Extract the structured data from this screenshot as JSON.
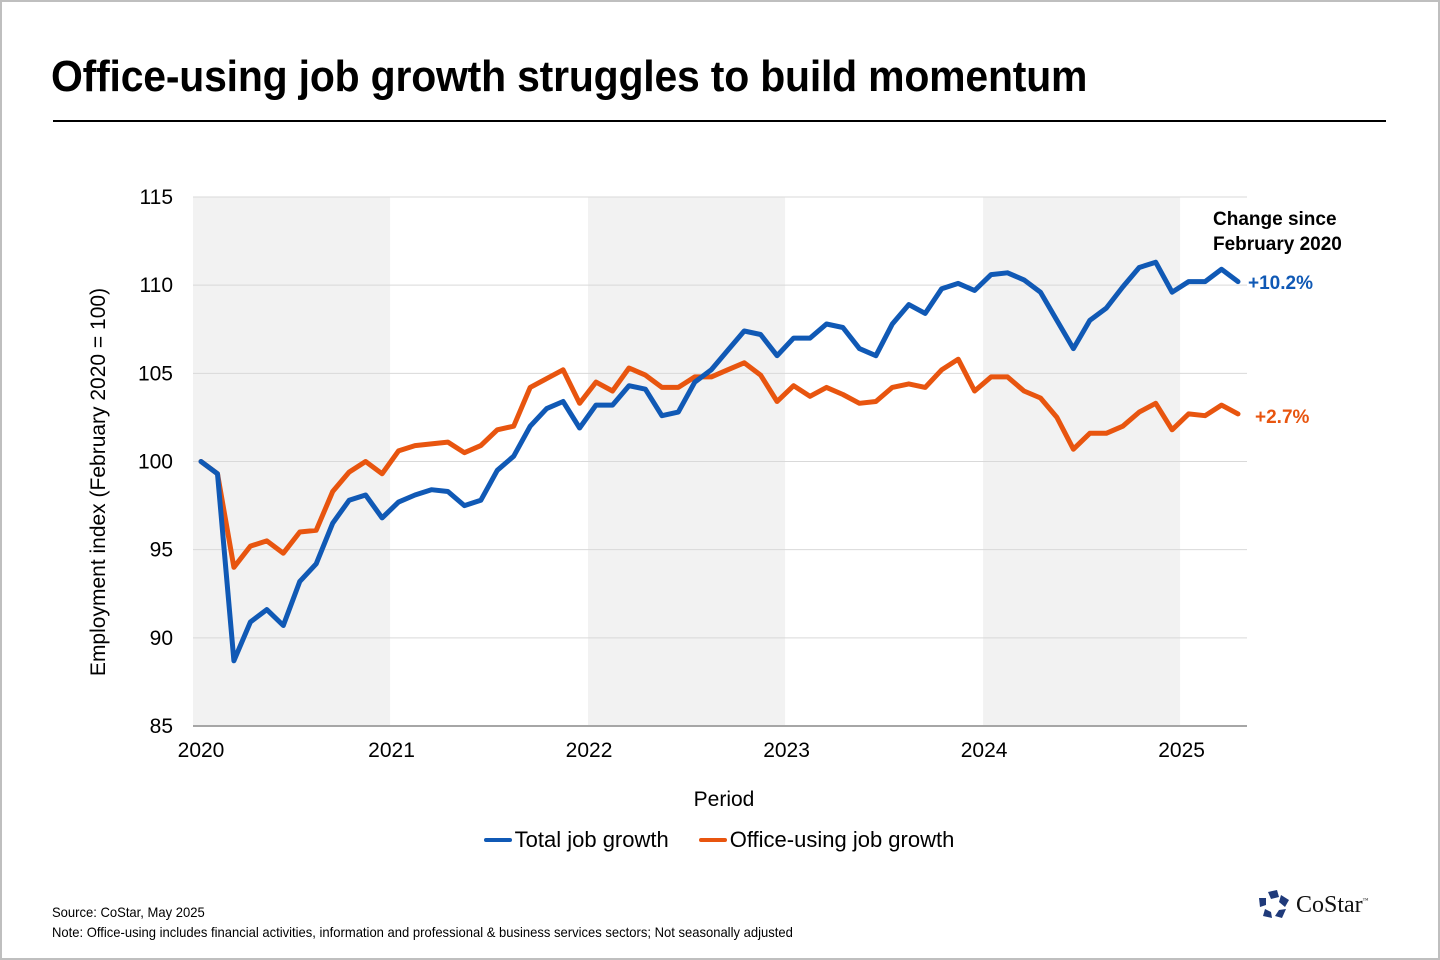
{
  "title": "Office-using job growth struggles to build momentum",
  "annotation": {
    "line1": "Change since",
    "line2": "February 2020"
  },
  "end_labels": {
    "total": "+10.2%",
    "office": "+2.7%"
  },
  "legend": {
    "total": "Total job growth",
    "office": "Office-using job growth"
  },
  "footer": {
    "source": "Source: CoStar, May 2025",
    "note": "Note: Office-using includes financial activities, information and professional & business services sectors; Not seasonally adjusted"
  },
  "logo": {
    "text": "CoStar",
    "tm": "™"
  },
  "colors": {
    "total": "#1059b5",
    "office": "#e8550f",
    "band": "#f2f2f2",
    "grid": "#d9d9d9",
    "axis": "#a6a6a6"
  },
  "chart_data": {
    "type": "line",
    "title": "Office-using job growth struggles to build momentum",
    "xlabel": "Period",
    "ylabel": "Employment index (February 2020 = 100)",
    "ylim": [
      85,
      115
    ],
    "yticks": [
      "85",
      "90",
      "95",
      "100",
      "105",
      "110",
      "115"
    ],
    "ytick_values": [
      85,
      90,
      95,
      100,
      105,
      110,
      115
    ],
    "xticks": [
      "2020",
      "2021",
      "2022",
      "2023",
      "2024",
      "2025"
    ],
    "start": "2020-01",
    "frequency": "monthly",
    "shaded_years": [
      "2020",
      "2022",
      "2024"
    ],
    "grid": true,
    "legend_position": "bottom",
    "series": [
      {
        "name": "Total job growth",
        "key": "total",
        "values": [
          100.0,
          99.3,
          88.7,
          90.9,
          91.6,
          90.7,
          93.2,
          94.2,
          96.5,
          97.8,
          98.1,
          96.8,
          97.7,
          98.1,
          98.4,
          98.3,
          97.5,
          97.8,
          99.5,
          100.3,
          102.0,
          103.0,
          103.4,
          101.9,
          103.2,
          103.2,
          104.3,
          104.1,
          102.6,
          102.8,
          104.5,
          105.2,
          106.3,
          107.4,
          107.2,
          106.0,
          107.0,
          107.0,
          107.8,
          107.6,
          106.4,
          106.0,
          107.8,
          108.9,
          108.4,
          109.8,
          110.1,
          109.7,
          110.6,
          110.7,
          110.3,
          109.6,
          108.0,
          106.4,
          108.0,
          108.7,
          109.9,
          111.0,
          111.3,
          109.6,
          110.2,
          110.2,
          110.9,
          110.2
        ]
      },
      {
        "name": "Office-using job growth",
        "key": "office",
        "values": [
          100.0,
          99.3,
          94.0,
          95.2,
          95.5,
          94.8,
          96.0,
          96.1,
          98.3,
          99.4,
          100.0,
          99.3,
          100.6,
          100.9,
          101.0,
          101.1,
          100.5,
          100.9,
          101.8,
          102.0,
          104.2,
          104.7,
          105.2,
          103.3,
          104.5,
          104.0,
          105.3,
          104.9,
          104.2,
          104.2,
          104.8,
          104.8,
          105.2,
          105.6,
          104.9,
          103.4,
          104.3,
          103.7,
          104.2,
          103.8,
          103.3,
          103.4,
          104.2,
          104.4,
          104.2,
          105.2,
          105.8,
          104.0,
          104.8,
          104.8,
          104.0,
          103.6,
          102.5,
          100.7,
          101.6,
          101.6,
          102.0,
          102.8,
          103.3,
          101.8,
          102.7,
          102.6,
          103.2,
          102.7
        ]
      }
    ],
    "annotations": [
      "Change since February 2020",
      "+10.2%",
      "+2.7%"
    ]
  }
}
